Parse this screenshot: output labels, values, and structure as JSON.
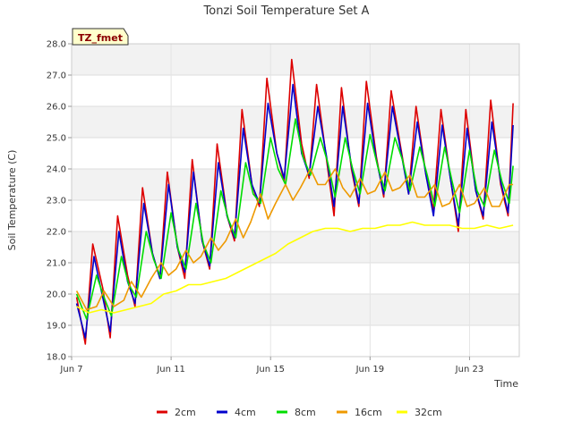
{
  "chart_data": {
    "type": "line",
    "title": "Tonzi Soil Temperature Set A",
    "xlabel": "Time",
    "ylabel": "Soil Temperature (C)",
    "badge": "TZ_fmet",
    "xlim": [
      7.0,
      25.0
    ],
    "ylim": [
      18.0,
      28.0
    ],
    "x_ticks": [
      {
        "value": 7,
        "label": "Jun 7"
      },
      {
        "value": 11,
        "label": "Jun 11"
      },
      {
        "value": 15,
        "label": "Jun 15"
      },
      {
        "value": 19,
        "label": "Jun 19"
      },
      {
        "value": 23,
        "label": "Jun 23"
      }
    ],
    "y_ticks": [
      {
        "value": 18,
        "label": "18.0"
      },
      {
        "value": 19,
        "label": "19.0"
      },
      {
        "value": 20,
        "label": "20.0"
      },
      {
        "value": 21,
        "label": "21.0"
      },
      {
        "value": 22,
        "label": "22.0"
      },
      {
        "value": 23,
        "label": "23.0"
      },
      {
        "value": 24,
        "label": "24.0"
      },
      {
        "value": 25,
        "label": "25.0"
      },
      {
        "value": 26,
        "label": "26.0"
      },
      {
        "value": 27,
        "label": "27.0"
      },
      {
        "value": 28,
        "label": "28.0"
      }
    ],
    "grid": true,
    "legend_position": "bottom",
    "series": [
      {
        "name": "2cm",
        "color": "#dd0000",
        "x": [
          7.2,
          7.55,
          7.85,
          8.25,
          8.55,
          8.85,
          9.25,
          9.55,
          9.85,
          10.25,
          10.55,
          10.85,
          11.25,
          11.55,
          11.85,
          12.25,
          12.55,
          12.85,
          13.25,
          13.55,
          13.85,
          14.25,
          14.55,
          14.85,
          15.25,
          15.55,
          15.85,
          16.25,
          16.55,
          16.85,
          17.25,
          17.55,
          17.85,
          18.25,
          18.55,
          18.85,
          19.25,
          19.55,
          19.85,
          20.25,
          20.55,
          20.85,
          21.25,
          21.55,
          21.85,
          22.25,
          22.55,
          22.85,
          23.25,
          23.55,
          23.85,
          24.25,
          24.55,
          24.75
        ],
        "y": [
          19.9,
          18.4,
          21.6,
          20.2,
          18.6,
          22.5,
          20.6,
          19.6,
          23.4,
          21.3,
          20.5,
          23.9,
          21.5,
          20.5,
          24.3,
          21.7,
          20.8,
          24.8,
          22.5,
          21.7,
          25.9,
          23.5,
          22.8,
          26.9,
          24.5,
          23.6,
          27.5,
          24.8,
          23.7,
          26.7,
          24.3,
          22.5,
          26.6,
          24.0,
          22.8,
          26.8,
          24.4,
          23.1,
          26.5,
          24.6,
          23.2,
          26.0,
          23.8,
          22.7,
          25.9,
          23.6,
          22.0,
          25.9,
          23.3,
          22.4,
          26.2,
          23.5,
          22.5,
          26.1
        ]
      },
      {
        "name": "4cm",
        "color": "#0000cc",
        "x": [
          7.2,
          7.55,
          7.9,
          8.25,
          8.55,
          8.9,
          9.25,
          9.55,
          9.9,
          10.25,
          10.55,
          10.9,
          11.25,
          11.55,
          11.9,
          12.25,
          12.55,
          12.9,
          13.25,
          13.55,
          13.9,
          14.25,
          14.55,
          14.9,
          15.25,
          15.55,
          15.9,
          16.25,
          16.55,
          16.9,
          17.25,
          17.55,
          17.9,
          18.25,
          18.55,
          18.9,
          19.25,
          19.55,
          19.9,
          20.25,
          20.55,
          20.9,
          21.25,
          21.55,
          21.9,
          22.25,
          22.55,
          22.9,
          23.25,
          23.55,
          23.9,
          24.25,
          24.55,
          24.75
        ],
        "y": [
          19.7,
          18.6,
          21.2,
          19.9,
          18.8,
          22.0,
          20.4,
          19.7,
          22.9,
          21.3,
          20.5,
          23.5,
          21.5,
          20.7,
          23.9,
          21.7,
          20.9,
          24.2,
          22.5,
          21.8,
          25.3,
          23.5,
          22.9,
          26.1,
          24.5,
          23.7,
          26.7,
          24.5,
          23.8,
          26.0,
          24.4,
          22.8,
          26.0,
          24.1,
          22.9,
          26.1,
          24.3,
          23.2,
          26.0,
          24.5,
          23.2,
          25.5,
          23.8,
          22.5,
          25.4,
          23.6,
          22.2,
          25.3,
          23.3,
          22.5,
          25.5,
          23.6,
          22.6,
          25.4
        ]
      },
      {
        "name": "8cm",
        "color": "#00dd00",
        "x": [
          7.2,
          7.6,
          8.0,
          8.3,
          8.6,
          9.0,
          9.3,
          9.6,
          10.0,
          10.3,
          10.6,
          11.0,
          11.3,
          11.6,
          12.0,
          12.3,
          12.6,
          13.0,
          13.3,
          13.6,
          14.0,
          14.3,
          14.6,
          15.0,
          15.3,
          15.6,
          16.0,
          16.3,
          16.6,
          17.0,
          17.3,
          17.6,
          18.0,
          18.3,
          18.6,
          19.0,
          19.3,
          19.6,
          20.0,
          20.3,
          20.6,
          21.0,
          21.3,
          21.6,
          22.0,
          22.3,
          22.6,
          23.0,
          23.3,
          23.6,
          24.0,
          24.3,
          24.6,
          24.75
        ],
        "y": [
          20.0,
          19.2,
          20.6,
          19.9,
          19.3,
          21.2,
          20.3,
          19.9,
          22.0,
          21.1,
          20.5,
          22.6,
          21.4,
          20.8,
          22.9,
          21.6,
          21.0,
          23.3,
          22.4,
          21.8,
          24.2,
          23.2,
          22.9,
          25.0,
          24.0,
          23.5,
          25.6,
          24.4,
          23.8,
          25.0,
          24.2,
          23.1,
          25.0,
          24.0,
          23.2,
          25.1,
          24.1,
          23.3,
          25.0,
          24.3,
          23.3,
          24.7,
          23.8,
          22.8,
          24.7,
          23.6,
          22.6,
          24.6,
          23.3,
          22.8,
          24.6,
          23.6,
          22.9,
          24.1
        ]
      },
      {
        "name": "16cm",
        "color": "#ee9900",
        "x": [
          7.2,
          7.6,
          8.0,
          8.3,
          8.7,
          9.1,
          9.4,
          9.8,
          10.2,
          10.6,
          10.9,
          11.2,
          11.6,
          11.9,
          12.2,
          12.6,
          12.9,
          13.2,
          13.6,
          13.9,
          14.2,
          14.6,
          14.9,
          15.2,
          15.6,
          15.9,
          16.2,
          16.6,
          16.9,
          17.2,
          17.6,
          17.9,
          18.2,
          18.6,
          18.9,
          19.2,
          19.6,
          19.9,
          20.2,
          20.6,
          20.9,
          21.2,
          21.6,
          21.9,
          22.2,
          22.6,
          22.9,
          23.2,
          23.6,
          23.9,
          24.2,
          24.6,
          24.75
        ],
        "y": [
          20.1,
          19.5,
          19.6,
          20.1,
          19.6,
          19.8,
          20.4,
          19.9,
          20.5,
          21.0,
          20.6,
          20.8,
          21.4,
          21.0,
          21.2,
          21.8,
          21.4,
          21.7,
          22.4,
          21.8,
          22.3,
          23.2,
          22.4,
          22.9,
          23.5,
          23.0,
          23.4,
          24.0,
          23.5,
          23.5,
          24.0,
          23.4,
          23.1,
          23.7,
          23.2,
          23.3,
          23.9,
          23.3,
          23.4,
          23.8,
          23.1,
          23.1,
          23.5,
          22.8,
          22.9,
          23.5,
          22.8,
          22.9,
          23.4,
          22.8,
          22.8,
          23.5,
          23.5
        ]
      },
      {
        "name": "32cm",
        "color": "#ffff00",
        "x": [
          7.2,
          7.7,
          8.2,
          8.7,
          9.2,
          9.7,
          10.2,
          10.7,
          11.2,
          11.7,
          12.2,
          12.7,
          13.2,
          13.7,
          14.2,
          14.7,
          15.2,
          15.7,
          16.2,
          16.7,
          17.2,
          17.7,
          18.2,
          18.7,
          19.2,
          19.7,
          20.2,
          20.7,
          21.2,
          21.7,
          22.2,
          22.7,
          23.2,
          23.7,
          24.2,
          24.75
        ],
        "y": [
          19.6,
          19.4,
          19.5,
          19.4,
          19.5,
          19.6,
          19.7,
          20.0,
          20.1,
          20.3,
          20.3,
          20.4,
          20.5,
          20.7,
          20.9,
          21.1,
          21.3,
          21.6,
          21.8,
          22.0,
          22.1,
          22.1,
          22.0,
          22.1,
          22.1,
          22.2,
          22.2,
          22.3,
          22.2,
          22.2,
          22.2,
          22.1,
          22.1,
          22.2,
          22.1,
          22.2
        ]
      }
    ]
  }
}
